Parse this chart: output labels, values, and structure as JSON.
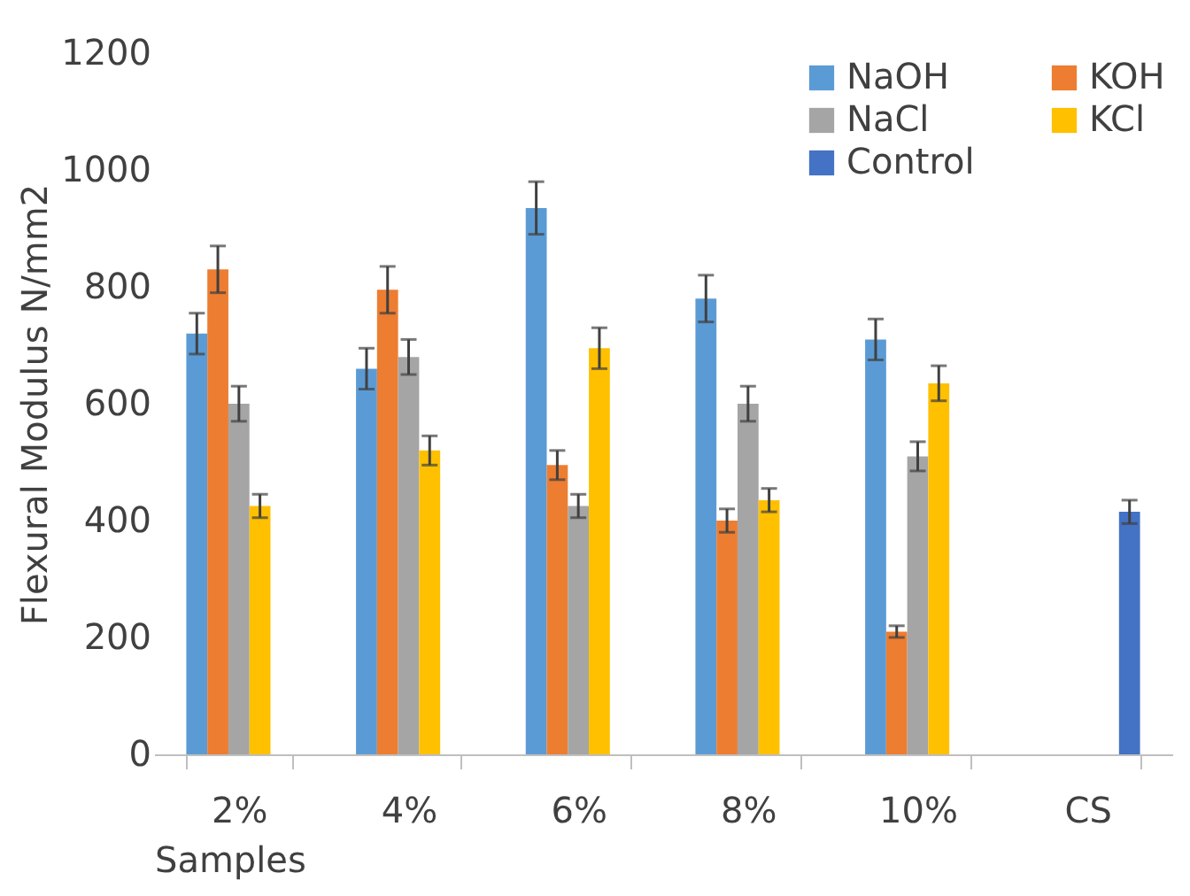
{
  "chart_data": {
    "type": "bar",
    "xlabel": "Samples",
    "ylabel": "Flexural Modulus N/mm2",
    "categories": [
      "2%",
      "4%",
      "6%",
      "8%",
      "10%",
      "CS"
    ],
    "series": [
      {
        "name": "NaOH",
        "color": "#5b9bd5",
        "values": [
          720,
          660,
          935,
          780,
          710,
          null
        ],
        "errors": [
          35,
          35,
          45,
          40,
          35,
          null
        ]
      },
      {
        "name": "KOH",
        "color": "#ed7d31",
        "values": [
          830,
          795,
          495,
          400,
          210,
          null
        ],
        "errors": [
          40,
          40,
          25,
          20,
          10,
          null
        ]
      },
      {
        "name": "NaCl",
        "color": "#a5a5a5",
        "values": [
          600,
          680,
          425,
          600,
          510,
          null
        ],
        "errors": [
          30,
          30,
          20,
          30,
          25,
          null
        ]
      },
      {
        "name": "KCl",
        "color": "#ffc000",
        "values": [
          425,
          520,
          695,
          435,
          635,
          null
        ],
        "errors": [
          20,
          25,
          35,
          20,
          30,
          null
        ]
      },
      {
        "name": "Control",
        "color": "#4472c4",
        "values": [
          null,
          null,
          null,
          null,
          null,
          415
        ],
        "errors": [
          null,
          null,
          null,
          null,
          null,
          20
        ]
      }
    ],
    "ylim": [
      0,
      1200
    ],
    "yticks": [
      0,
      200,
      400,
      600,
      800,
      1000,
      1200
    ],
    "grid": false,
    "legend": "top right"
  }
}
